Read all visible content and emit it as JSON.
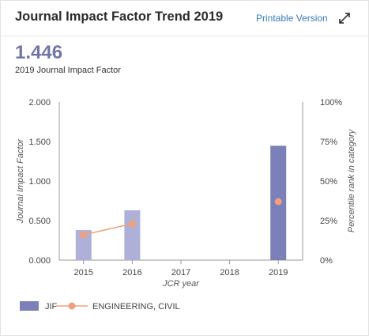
{
  "header": {
    "title": "Journal Impact Factor Trend 2019",
    "printable_label": "Printable Version",
    "expand_icon": "expand-arrows-icon"
  },
  "metric": {
    "value": "1.446",
    "label": "2019 Journal Impact Factor"
  },
  "legend": {
    "jif_label": "JIF",
    "category_label": "ENGINEERING, CIVIL"
  },
  "colors": {
    "jif_current": "#7b80b8",
    "jif_previous": "#aeb0d8",
    "percentile": "#f0a07c",
    "metric": "#7276a6",
    "link": "#3b7bb8"
  },
  "chart_data": {
    "type": "bar",
    "xlabel": "JCR year",
    "ylabel": "Journal Impact Factor",
    "y2label": "Percentile rank in category",
    "ylim": [
      0,
      2
    ],
    "y2lim": [
      0,
      100
    ],
    "yticks": [
      "0.000",
      "0.500",
      "1.000",
      "1.500",
      "2.000"
    ],
    "y2ticks": [
      "0%",
      "25%",
      "50%",
      "75%",
      "100%"
    ],
    "categories": [
      "2015",
      "2016",
      "2017",
      "2018",
      "2019"
    ],
    "grid": false,
    "legend_position": "bottom-left",
    "series": [
      {
        "name": "JIF",
        "type": "bar",
        "axis": "left",
        "values": [
          0.38,
          0.63,
          null,
          null,
          1.446
        ]
      },
      {
        "name": "ENGINEERING, CIVIL",
        "type": "line",
        "axis": "right",
        "values": [
          16,
          23,
          null,
          null,
          37
        ]
      }
    ]
  }
}
